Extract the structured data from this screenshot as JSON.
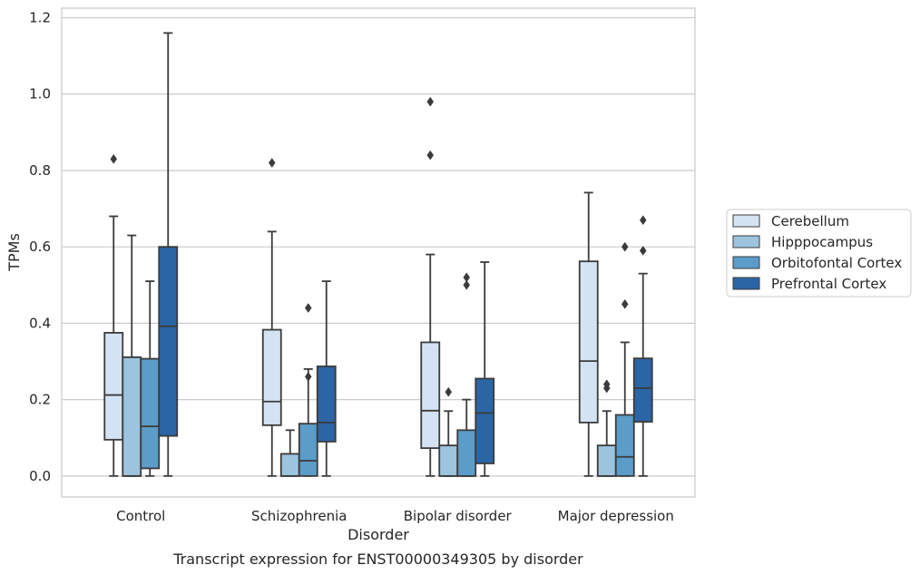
{
  "chart_data": {
    "type": "box",
    "caption": "Transcript expression for ENST00000349305 by disorder",
    "xlabel": "Disorder",
    "ylabel": "TPMs",
    "ylim": [
      -0.055,
      1.225
    ],
    "yticks": [
      "0.0",
      "0.2",
      "0.4",
      "0.6",
      "0.8",
      "1.0",
      "1.2"
    ],
    "ytick_values": [
      0.0,
      0.2,
      0.4,
      0.6,
      0.8,
      1.0,
      1.2
    ],
    "grid": "horizontal",
    "legend_position": "outside-right",
    "categories": [
      "Control",
      "Schizophrenia",
      "Bipolar disorder",
      "Major depression"
    ],
    "series": [
      {
        "name": "Cerebellum",
        "color": "#d4e3f3",
        "boxes": [
          {
            "whislo": 0.0,
            "q1": 0.095,
            "med": 0.212,
            "q3": 0.375,
            "whishi": 0.68,
            "fliers": [
              0.83
            ]
          },
          {
            "whislo": 0.0,
            "q1": 0.133,
            "med": 0.195,
            "q3": 0.383,
            "whishi": 0.64,
            "fliers": [
              0.82
            ]
          },
          {
            "whislo": 0.0,
            "q1": 0.073,
            "med": 0.171,
            "q3": 0.35,
            "whishi": 0.58,
            "fliers": [
              0.84,
              0.98
            ]
          },
          {
            "whislo": 0.0,
            "q1": 0.14,
            "med": 0.301,
            "q3": 0.562,
            "whishi": 0.742,
            "fliers": []
          }
        ]
      },
      {
        "name": "Hipppocampus",
        "color": "#9cc4df",
        "boxes": [
          {
            "whislo": 0.0,
            "q1": 0.0,
            "med": 0.0,
            "q3": 0.311,
            "whishi": 0.63,
            "fliers": []
          },
          {
            "whislo": 0.0,
            "q1": 0.0,
            "med": 0.0,
            "q3": 0.058,
            "whishi": 0.12,
            "fliers": []
          },
          {
            "whislo": 0.0,
            "q1": 0.0,
            "med": 0.0,
            "q3": 0.08,
            "whishi": 0.17,
            "fliers": [
              0.22
            ]
          },
          {
            "whislo": 0.0,
            "q1": 0.0,
            "med": 0.0,
            "q3": 0.08,
            "whishi": 0.17,
            "fliers": [
              0.23,
              0.24
            ]
          }
        ]
      },
      {
        "name": "Orbitofontal Cortex",
        "color": "#5b9cc8",
        "boxes": [
          {
            "whislo": 0.0,
            "q1": 0.02,
            "med": 0.13,
            "q3": 0.307,
            "whishi": 0.51,
            "fliers": []
          },
          {
            "whislo": 0.0,
            "q1": 0.0,
            "med": 0.04,
            "q3": 0.137,
            "whishi": 0.28,
            "fliers": [
              0.26,
              0.44
            ]
          },
          {
            "whislo": 0.0,
            "q1": 0.0,
            "med": 0.0,
            "q3": 0.12,
            "whishi": 0.2,
            "fliers": [
              0.5,
              0.52
            ]
          },
          {
            "whislo": 0.0,
            "q1": 0.0,
            "med": 0.05,
            "q3": 0.16,
            "whishi": 0.35,
            "fliers": [
              0.45,
              0.6
            ]
          }
        ]
      },
      {
        "name": "Prefrontal Cortex",
        "color": "#2a65a5",
        "boxes": [
          {
            "whislo": 0.0,
            "q1": 0.105,
            "med": 0.392,
            "q3": 0.6,
            "whishi": 1.16,
            "fliers": []
          },
          {
            "whislo": 0.0,
            "q1": 0.09,
            "med": 0.14,
            "q3": 0.287,
            "whishi": 0.51,
            "fliers": []
          },
          {
            "whislo": 0.0,
            "q1": 0.033,
            "med": 0.165,
            "q3": 0.255,
            "whishi": 0.56,
            "fliers": []
          },
          {
            "whislo": 0.0,
            "q1": 0.142,
            "med": 0.23,
            "q3": 0.308,
            "whishi": 0.53,
            "fliers": [
              0.59,
              0.67
            ]
          }
        ]
      }
    ]
  }
}
